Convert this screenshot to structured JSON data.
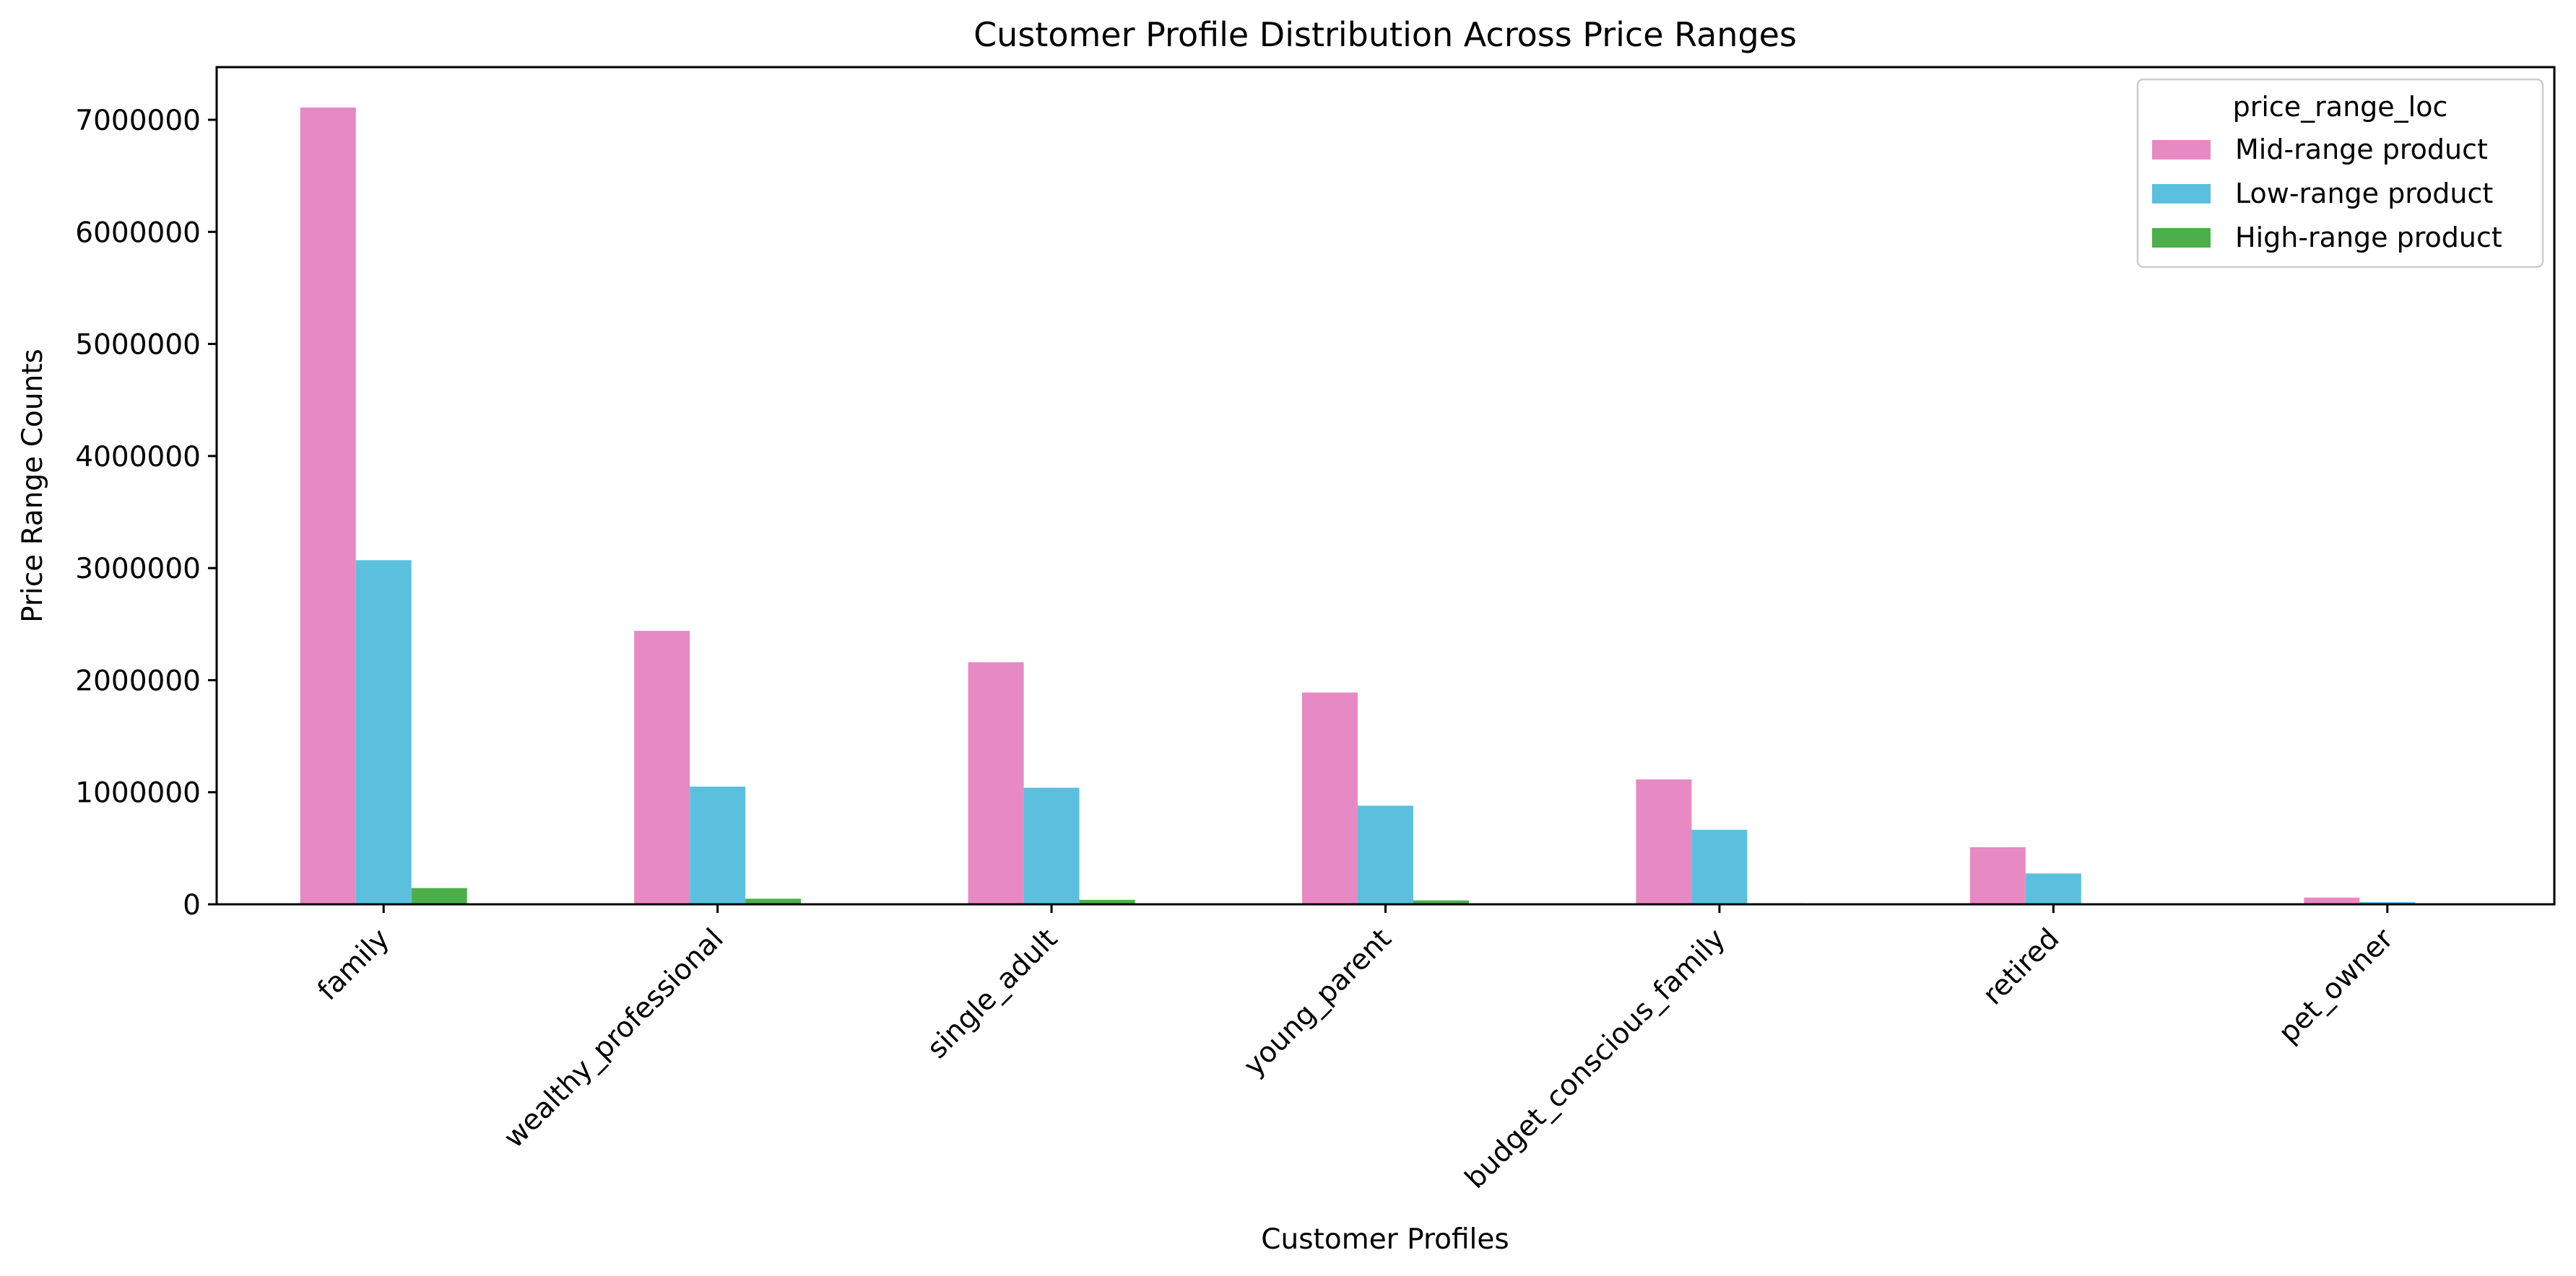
{
  "chart_data": {
    "type": "bar",
    "title": "Customer Profile Distribution Across Price Ranges",
    "xlabel": "Customer Profiles",
    "ylabel": "Price Range Counts",
    "categories": [
      "family",
      "wealthy_professional",
      "single_adult",
      "young_parent",
      "budget_conscious_family",
      "retired",
      "pet_owner"
    ],
    "series": [
      {
        "name": "Mid-range product",
        "color": "#e78ac3",
        "values": [
          7110000,
          2440000,
          2160000,
          1890000,
          1115000,
          510000,
          60000
        ]
      },
      {
        "name": "Low-range product",
        "color": "#5bc0de",
        "values": [
          3070000,
          1050000,
          1040000,
          880000,
          665000,
          275000,
          20000
        ]
      },
      {
        "name": "High-range product",
        "color": "#4daf4a",
        "values": [
          145000,
          50000,
          40000,
          35000,
          10000,
          3000,
          1000
        ]
      }
    ],
    "ylim": [
      0,
      7470000
    ],
    "yticks": [
      0,
      1000000,
      2000000,
      3000000,
      4000000,
      5000000,
      6000000,
      7000000
    ],
    "ytick_labels": [
      "0",
      "1000000",
      "2000000",
      "3000000",
      "4000000",
      "5000000",
      "6000000",
      "7000000"
    ],
    "legend": {
      "title": "price_range_loc",
      "position": "top-right"
    },
    "grid": false
  }
}
